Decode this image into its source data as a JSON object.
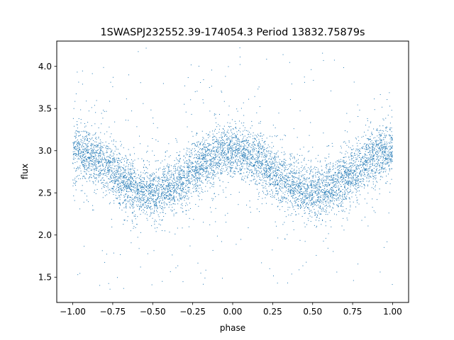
{
  "chart_data": {
    "type": "scatter",
    "title": "1SWASPJ232552.39-174054.3 Period 13832.75879s",
    "xlabel": "phase",
    "ylabel": "flux",
    "xlim": [
      -1.1,
      1.1
    ],
    "ylim": [
      1.2,
      4.3
    ],
    "xticks": [
      -1.0,
      -0.75,
      -0.5,
      -0.25,
      0.0,
      0.25,
      0.5,
      0.75,
      1.0
    ],
    "xtick_labels": [
      "−1.00",
      "−0.75",
      "−0.50",
      "−0.25",
      "0.00",
      "0.25",
      "0.50",
      "0.75",
      "1.00"
    ],
    "yticks": [
      1.5,
      2.0,
      2.5,
      3.0,
      3.5,
      4.0
    ],
    "ytick_labels": [
      "1.5",
      "2.0",
      "2.5",
      "3.0",
      "3.5",
      "4.0"
    ],
    "grid": false,
    "marker_color": "#1f77b4",
    "model": {
      "description": "sinusoidal light curve folded on period, plotted over phase -1 to 1",
      "mean_flux": 2.75,
      "amplitude": 0.25,
      "peak_phases": [
        -1.0,
        0.0,
        1.0
      ],
      "trough_phases": [
        -0.5,
        0.5
      ],
      "scatter_sigma": 0.15,
      "outlier_range": [
        1.35,
        4.25
      ]
    },
    "series": [
      {
        "points": [
          [
            -1.0,
            3.0
          ],
          [
            -0.9,
            2.97
          ],
          [
            -0.8,
            2.88
          ],
          [
            -0.7,
            2.72
          ],
          [
            -0.6,
            2.56
          ],
          [
            -0.5,
            2.5
          ],
          [
            -0.4,
            2.56
          ],
          [
            -0.3,
            2.72
          ],
          [
            -0.2,
            2.88
          ],
          [
            -0.1,
            2.97
          ],
          [
            0.0,
            3.0
          ],
          [
            0.1,
            2.97
          ],
          [
            0.2,
            2.88
          ],
          [
            0.3,
            2.72
          ],
          [
            0.4,
            2.56
          ],
          [
            0.5,
            2.5
          ],
          [
            0.6,
            2.56
          ],
          [
            0.7,
            2.72
          ],
          [
            0.8,
            2.88
          ],
          [
            0.9,
            2.97
          ],
          [
            1.0,
            3.0
          ]
        ]
      }
    ]
  }
}
